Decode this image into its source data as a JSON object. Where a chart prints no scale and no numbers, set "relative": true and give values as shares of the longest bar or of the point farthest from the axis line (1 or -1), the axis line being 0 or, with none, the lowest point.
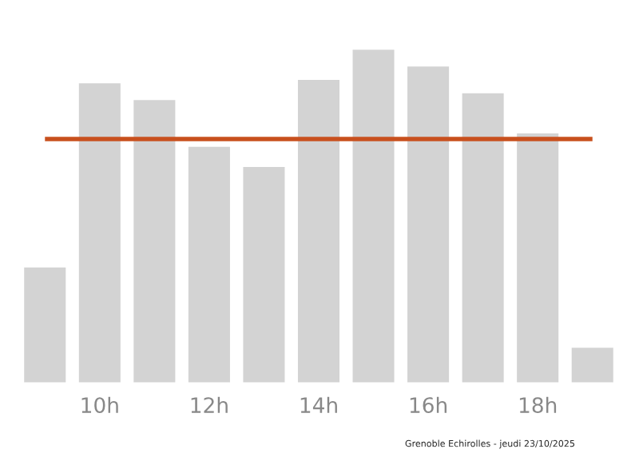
{
  "chart_data": {
    "type": "bar",
    "relative": true,
    "categories": [
      null,
      "10h",
      null,
      "12h",
      null,
      "14h",
      null,
      "16h",
      null,
      "18h",
      null
    ],
    "values": [
      0.35,
      0.9,
      0.85,
      0.71,
      0.65,
      0.91,
      1,
      0.95,
      0.87,
      0.75,
      0.11
    ],
    "color": "#d3d3d3",
    "ref_lines": [
      {
        "axis": "y",
        "value": 0.73,
        "color": "#c8501e"
      }
    ],
    "annotations": [
      "Grenoble Echirolles - jeudi 23/10/2025"
    ],
    "grid": false,
    "legend": false
  }
}
